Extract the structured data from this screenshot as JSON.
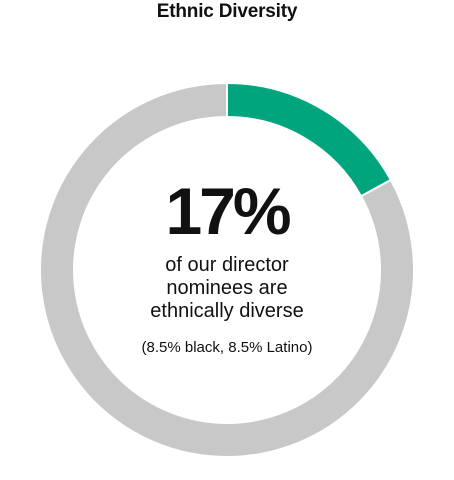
{
  "chart_data": {
    "type": "pie",
    "variant": "donut",
    "title": "Ethnic Diversity",
    "slices": [
      {
        "label": "ethnically diverse",
        "value": 17,
        "color": "#00A57E"
      },
      {
        "label": "",
        "value": 83,
        "color": "#C8C8C8"
      }
    ],
    "center": {
      "value": "17%",
      "lines": [
        "of our director",
        "nominees are",
        "ethnically diverse"
      ],
      "note": "(8.5% black, 8.5% Latino)"
    }
  }
}
